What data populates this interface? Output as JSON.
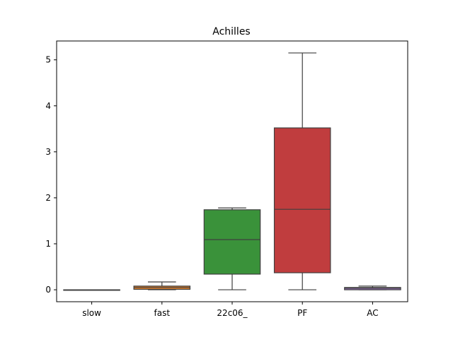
{
  "chart_data": {
    "type": "box",
    "title": "Achilles",
    "xlabel": "",
    "ylabel": "",
    "ylim": [
      -0.26,
      5.41
    ],
    "yticks": [
      0,
      1,
      2,
      3,
      4,
      5
    ],
    "grid": false,
    "legend": "none",
    "categories": [
      "slow",
      "fast",
      "22c06_",
      "PF",
      "AC"
    ],
    "boxes": [
      {
        "label": "slow",
        "whisker_low": 0,
        "q1": 0,
        "median": 0,
        "q3": 0,
        "whisker_high": 0,
        "color": "#3274a1"
      },
      {
        "label": "fast",
        "whisker_low": 0,
        "q1": 0.01,
        "median": 0.05,
        "q3": 0.08,
        "whisker_high": 0.17,
        "color": "#e1812c"
      },
      {
        "label": "22c06_",
        "whisker_low": 0,
        "q1": 0.34,
        "median": 1.09,
        "q3": 1.74,
        "whisker_high": 1.78,
        "color": "#3a923a"
      },
      {
        "label": "PF",
        "whisker_low": 0,
        "q1": 0.37,
        "median": 1.75,
        "q3": 3.52,
        "whisker_high": 5.15,
        "color": "#c03d3e"
      },
      {
        "label": "AC",
        "whisker_low": 0,
        "q1": 0.0,
        "median": 0.035,
        "q3": 0.05,
        "whisker_high": 0.08,
        "color": "#9372b2"
      }
    ]
  }
}
